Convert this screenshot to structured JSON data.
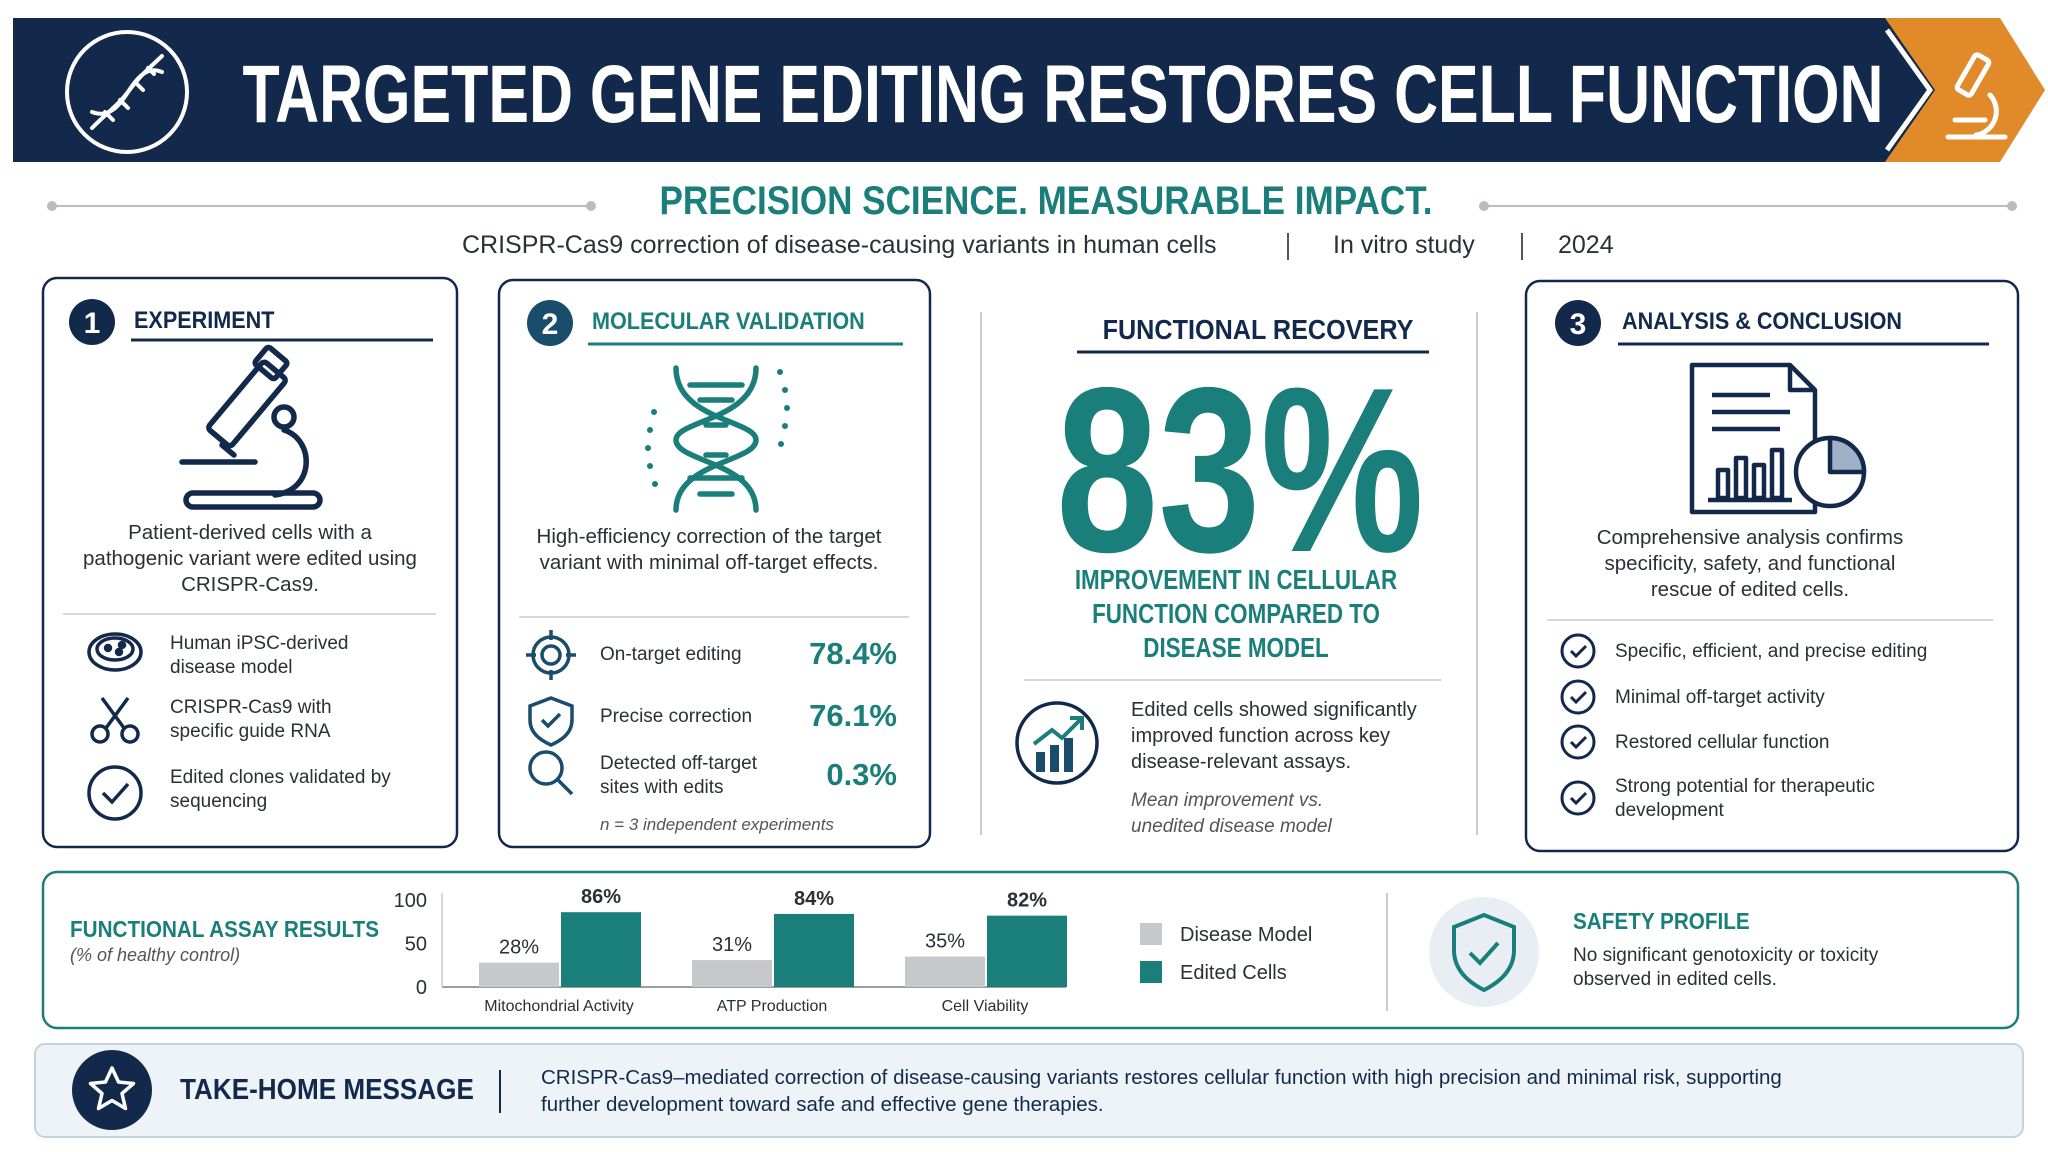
{
  "header": {
    "title": "TARGETED GENE EDITING RESTORES CELL FUNCTION",
    "tagline": "PRECISION SCIENCE. MEASURABLE IMPACT.",
    "subtitle": [
      "CRISPR-Cas9 correction of disease-causing variants in human cells",
      "In vitro study",
      "2024"
    ]
  },
  "experiment": {
    "number": "1",
    "title": "EXPERIMENT",
    "description": "Patient-derived cells with a pathogenic variant were edited using CRISPR-Cas9.",
    "items": [
      "Human iPSC-derived disease model",
      "CRISPR-Cas9 with specific guide RNA",
      "Edited clones validated by sequencing"
    ]
  },
  "validation": {
    "number": "2",
    "title": "MOLECULAR VALIDATION",
    "description": "High-efficiency correction of the target variant with minimal off-target effects.",
    "rows": [
      {
        "label": "On-target editing",
        "value": "78.4%"
      },
      {
        "label": "Precise correction",
        "value": "76.1%"
      },
      {
        "label": "Detected off-target sites with edits",
        "value": "0.3%"
      }
    ],
    "note": "n = 3 independent experiments"
  },
  "recovery": {
    "title": "FUNCTIONAL RECOVERY",
    "stat": "83%",
    "stat_caption": "IMPROVEMENT IN CELLULAR FUNCTION COMPARED TO DISEASE MODEL",
    "description": "Edited cells showed significantly improved function across key disease-relevant assays.",
    "note": "Mean improvement vs. unedited disease model"
  },
  "analysis": {
    "number": "3",
    "title": "ANALYSIS & CONCLUSION",
    "description": "Comprehensive analysis confirms specificity, safety, and functional rescue of edited cells.",
    "items": [
      "Specific, efficient, and precise editing",
      "Minimal off-target activity",
      "Restored cellular function",
      "Strong potential for therapeutic development"
    ]
  },
  "chart_data": {
    "type": "bar",
    "title": "FUNCTIONAL ASSAY RESULTS",
    "subtitle": "(% of healthy control)",
    "categories": [
      "Mitochondrial Activity",
      "ATP Production",
      "Cell Viability"
    ],
    "series": [
      {
        "name": "Disease Model",
        "color": "#c6c8cb",
        "values": [
          28,
          31,
          35
        ],
        "value_labels": [
          "28%",
          "31%",
          "35%"
        ]
      },
      {
        "name": "Edited Cells",
        "color": "#1a7f7a",
        "values": [
          86,
          84,
          82
        ],
        "value_labels": [
          "86%",
          "84%",
          "82%"
        ]
      }
    ],
    "ylim": [
      0,
      100
    ],
    "yticks": [
      0,
      50,
      100
    ],
    "grid": false
  },
  "safety": {
    "title": "SAFETY PROFILE",
    "description": "No significant genotoxicity or toxicity observed in edited cells."
  },
  "take_home": {
    "title": "TAKE-HOME MESSAGE",
    "message": "CRISPR-Cas9–mediated correction of disease-causing variants restores cellular function with high precision and minimal risk, supporting further development toward safe and effective gene therapies."
  }
}
